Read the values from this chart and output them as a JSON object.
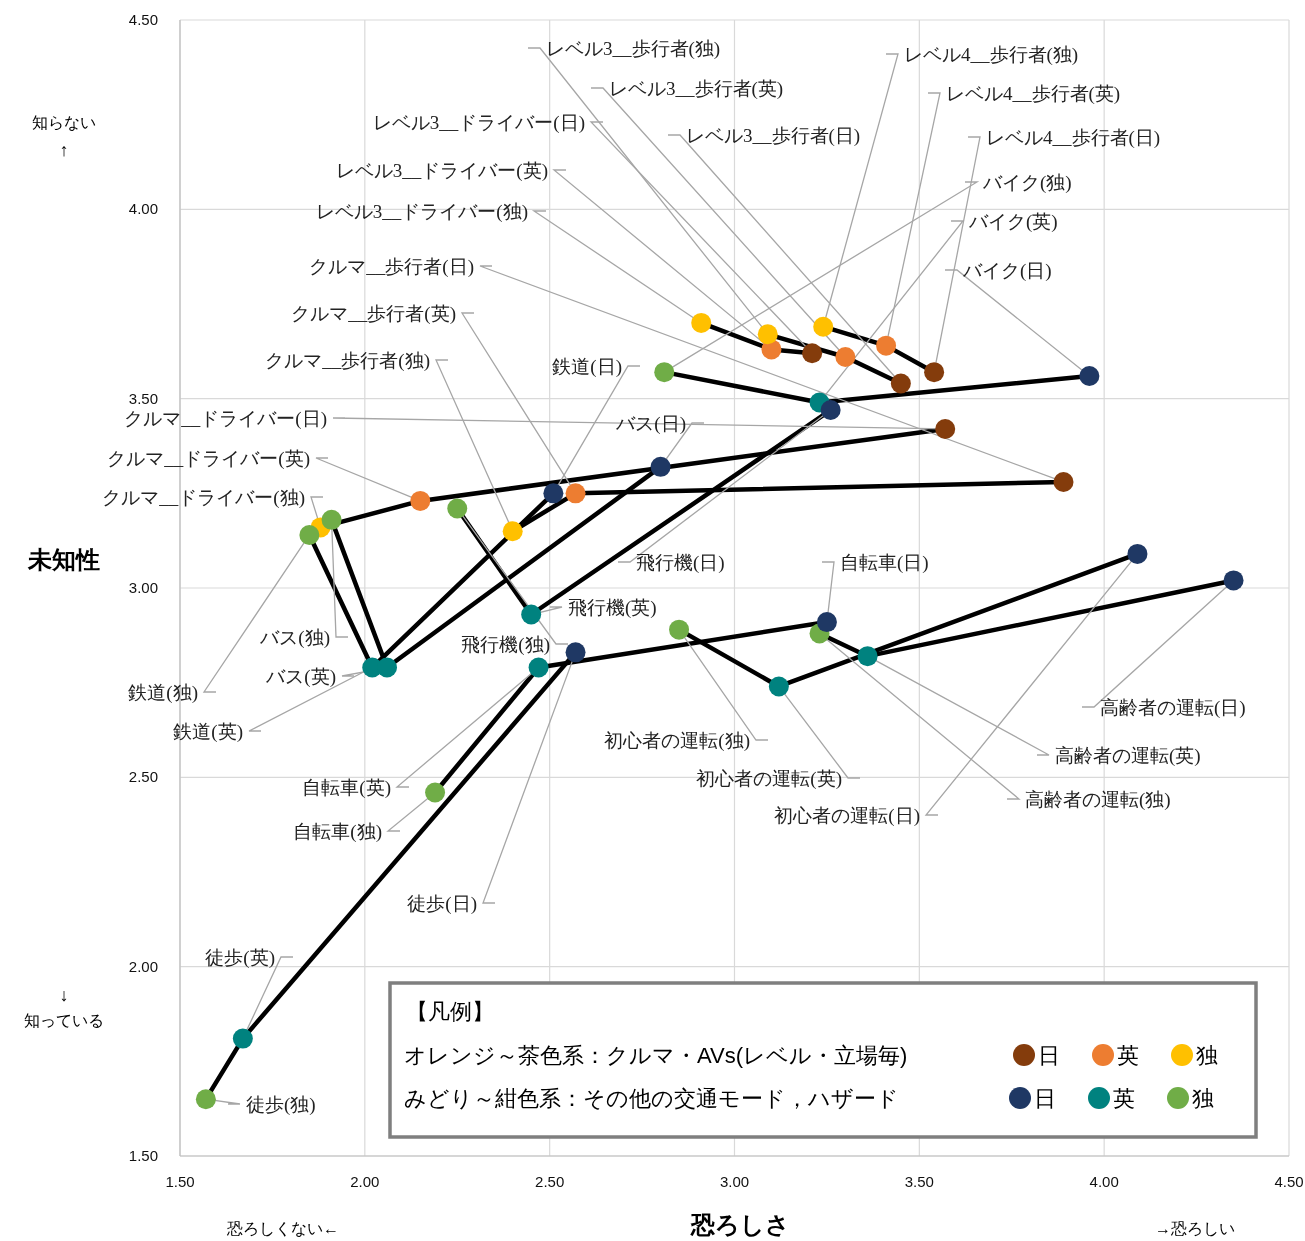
{
  "chart_data": {
    "type": "line",
    "xlabel": "恐ろしさ",
    "ylabel": "未知性",
    "xlim": [
      1.5,
      4.5
    ],
    "ylim": [
      1.5,
      4.5
    ],
    "xticks": [
      {
        "value": 1.5,
        "label": "1.50"
      },
      {
        "value": 2,
        "label": "2.00"
      },
      {
        "value": 2.5,
        "label": "2.50"
      },
      {
        "value": 3,
        "label": "3.00"
      },
      {
        "value": 3.5,
        "label": "3.50"
      },
      {
        "value": 4,
        "label": "4.00"
      },
      {
        "value": 4.5,
        "label": "4.50"
      }
    ],
    "yticks": [
      {
        "value": 1.5,
        "label": "1.50"
      },
      {
        "value": 2,
        "label": "2.00"
      },
      {
        "value": 2.5,
        "label": "2.50"
      },
      {
        "value": 3,
        "label": "3.00"
      },
      {
        "value": 3.5,
        "label": "3.50"
      },
      {
        "value": 4,
        "label": "4.00"
      },
      {
        "value": 4.5,
        "label": "4.50"
      }
    ],
    "grid": true,
    "marker": "circle",
    "line_style": "solid",
    "series": [
      {
        "color": "#000000",
        "colors": [
          "#843c0c",
          "#ed7d31",
          "#ffc000"
        ],
        "x": [
          3.21,
          3.1,
          2.91
        ],
        "values": [
          3.62,
          3.63,
          3.7
        ],
        "value_labels": [
          "レベル3__ドライバー(日)",
          "レベル3__ドライバー(英)",
          "レベル3__ドライバー(独)"
        ]
      },
      {
        "color": "#000000",
        "colors": [
          "#843c0c",
          "#ed7d31",
          "#ffc000"
        ],
        "x": [
          3.45,
          3.3,
          3.09
        ],
        "values": [
          3.54,
          3.61,
          3.67
        ],
        "value_labels": [
          "レベル3__歩行者(日)",
          "レベル3__歩行者(英)",
          "レベル3__歩行者(独)"
        ]
      },
      {
        "color": "#000000",
        "colors": [
          "#843c0c",
          "#ed7d31",
          "#ffc000"
        ],
        "x": [
          3.54,
          3.41,
          3.24
        ],
        "values": [
          3.57,
          3.64,
          3.69
        ],
        "value_labels": [
          "レベル4__歩行者(日)",
          "レベル4__歩行者(英)",
          "レベル4__歩行者(独)"
        ]
      },
      {
        "color": "#000000",
        "colors": [
          "#1f3864",
          "#00827f",
          "#70ad47"
        ],
        "x": [
          3.96,
          3.23,
          2.81
        ],
        "values": [
          3.56,
          3.49,
          3.57
        ],
        "value_labels": [
          "バイク(日)",
          "バイク(英)",
          "バイク(独)"
        ]
      },
      {
        "color": "#000000",
        "colors": [
          "#843c0c",
          "#ed7d31",
          "#ffc000"
        ],
        "x": [
          3.89,
          2.57,
          2.4
        ],
        "values": [
          3.28,
          3.25,
          3.15
        ],
        "value_labels": [
          "クルマ__歩行者(日)",
          "クルマ__歩行者(英)",
          "クルマ__歩行者(独)"
        ]
      },
      {
        "color": "#000000",
        "colors": [
          "#843c0c",
          "#ed7d31",
          "#ffc000"
        ],
        "x": [
          3.57,
          2.15,
          1.88
        ],
        "values": [
          3.42,
          3.23,
          3.16
        ],
        "value_labels": [
          "クルマ__ドライバー(日)",
          "クルマ__ドライバー(英)",
          "クルマ__ドライバー(独)"
        ]
      },
      {
        "color": "#000000",
        "colors": [
          "#1f3864",
          "#00827f",
          "#70ad47"
        ],
        "x": [
          2.51,
          2.02,
          1.85
        ],
        "values": [
          3.25,
          2.79,
          3.14
        ],
        "value_labels": [
          "鉄道(日)",
          "鉄道(英)",
          "鉄道(独)"
        ]
      },
      {
        "color": "#000000",
        "colors": [
          "#1f3864",
          "#00827f",
          "#70ad47"
        ],
        "x": [
          2.8,
          2.06,
          1.91
        ],
        "values": [
          3.32,
          2.79,
          3.18
        ],
        "value_labels": [
          "バス(日)",
          "バス(英)",
          "バス(独)"
        ]
      },
      {
        "color": "#000000",
        "colors": [
          "#1f3864",
          "#00827f",
          "#70ad47"
        ],
        "x": [
          3.26,
          2.45,
          2.25
        ],
        "values": [
          3.47,
          2.93,
          3.21
        ],
        "value_labels": [
          "飛行機(日)",
          "飛行機(英)",
          "飛行機(独)"
        ]
      },
      {
        "color": "#000000",
        "colors": [
          "#1f3864",
          "#00827f",
          "#70ad47"
        ],
        "x": [
          4.09,
          3.12,
          2.85
        ],
        "values": [
          3.09,
          2.74,
          2.89
        ],
        "value_labels": [
          "初心者の運転(日)",
          "初心者の運転(英)",
          "初心者の運転(独)"
        ]
      },
      {
        "color": "#000000",
        "colors": [
          "#1f3864",
          "#00827f",
          "#70ad47"
        ],
        "x": [
          4.35,
          3.36,
          3.23
        ],
        "values": [
          3.02,
          2.82,
          2.88
        ],
        "value_labels": [
          "高齢者の運転(日)",
          "高齢者の運転(英)",
          "高齢者の運転(独)"
        ]
      },
      {
        "color": "#000000",
        "colors": [
          "#1f3864",
          "#00827f",
          "#70ad47"
        ],
        "x": [
          3.25,
          2.47,
          2.19
        ],
        "values": [
          2.91,
          2.79,
          2.46
        ],
        "value_labels": [
          "自転車(日)",
          "自転車(英)",
          "自転車(独)"
        ]
      },
      {
        "color": "#000000",
        "colors": [
          "#1f3864",
          "#00827f",
          "#70ad47"
        ],
        "x": [
          2.57,
          1.67,
          1.57
        ],
        "values": [
          2.83,
          1.81,
          1.65
        ],
        "value_labels": [
          "徒歩(日)",
          "徒歩(英)",
          "徒歩(独)"
        ]
      }
    ],
    "annotations": [
      "【凡例】",
      "オレンジ～茶色系：クルマ・AVs(レベル・立場毎)",
      "みどり～紺色系：その他の交通モード，ハザード",
      "日",
      "英",
      "独",
      "日",
      "英",
      "独",
      "知らない",
      "↑",
      "↓",
      "知っている",
      "恐ろしくない←",
      "→恐ろしい"
    ]
  }
}
